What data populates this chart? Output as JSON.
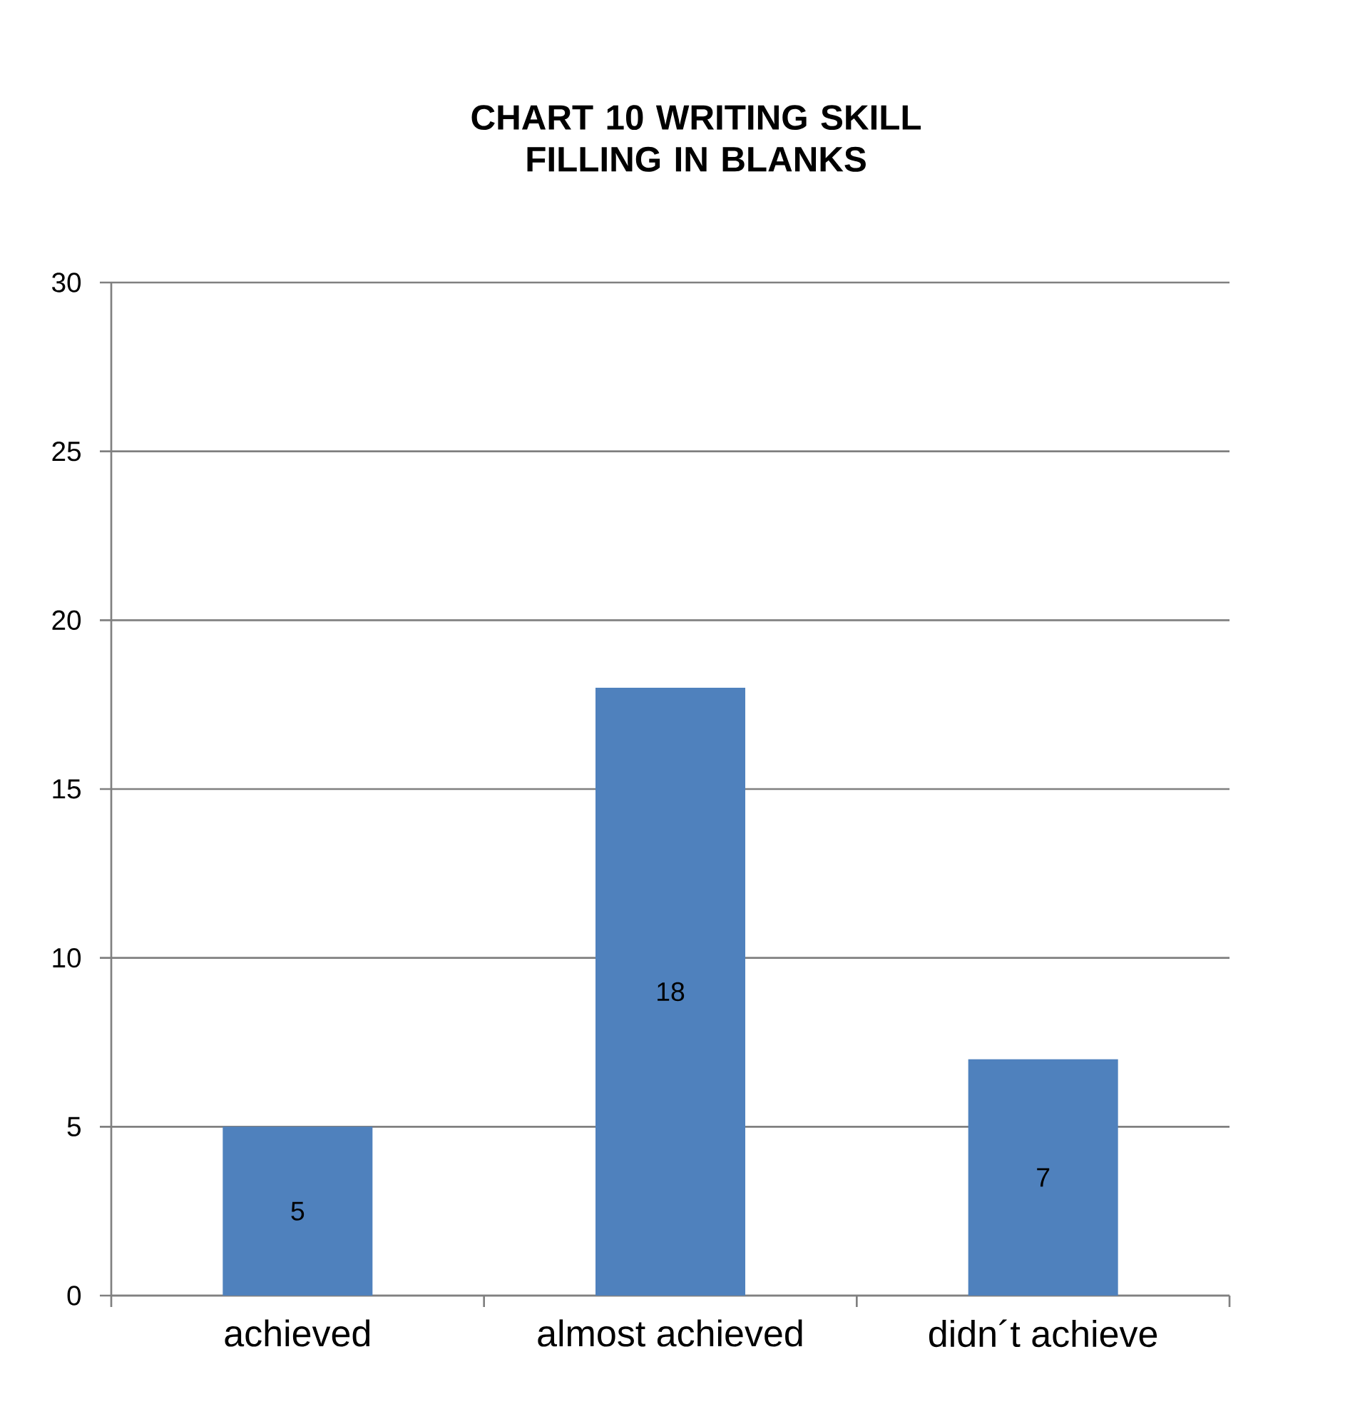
{
  "chart_data": {
    "type": "bar",
    "title": "CHART 10 WRITING SKILL FILLING IN BLANKS",
    "categories": [
      "achieved",
      "almost achieved",
      "didn´t achieve"
    ],
    "values": [
      5,
      18,
      7
    ],
    "color": "#4f81bd",
    "ylim": [
      0,
      30
    ],
    "yticks": [
      0,
      5,
      10,
      15,
      20,
      25,
      30
    ],
    "grid": "y",
    "data_labels": true
  }
}
